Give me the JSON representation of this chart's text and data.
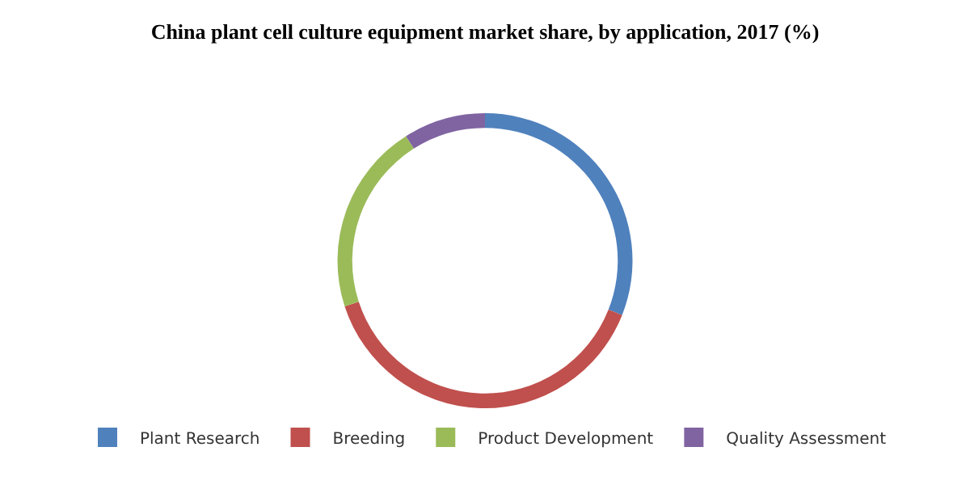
{
  "chart_data": {
    "type": "donut",
    "title": "China plant cell culture equipment market share, by application, 2017 (%)",
    "categories": [
      "Plant Research",
      "Breeding",
      "Product Development",
      "Quality Assessment"
    ],
    "values": [
      31,
      39,
      21,
      9
    ],
    "colors": [
      "#4f81bd",
      "#c0504d",
      "#9bbb59",
      "#8064a2"
    ],
    "legend": "bottom"
  }
}
